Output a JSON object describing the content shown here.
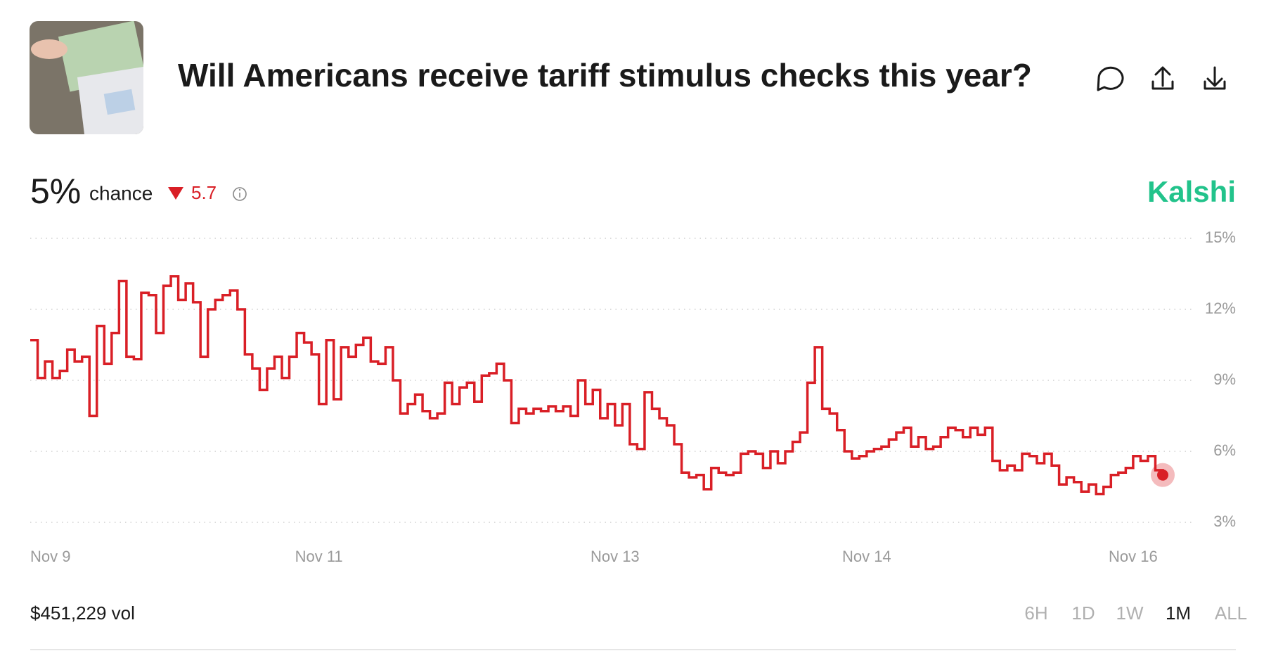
{
  "header": {
    "title": "Will Americans receive tariff stimulus checks this year?"
  },
  "stats": {
    "chance": "5%",
    "chance_label": "chance",
    "change": "5.7",
    "brand": "Kalshi"
  },
  "footer": {
    "volume": "$451,229 vol",
    "ranges": [
      "6H",
      "1D",
      "1W",
      "1M",
      "ALL"
    ],
    "selected_range": "1M"
  },
  "chart_data": {
    "type": "step-line",
    "series": [
      {
        "name": "Yes",
        "color": "#d91f26",
        "values": [
          10.7,
          9.1,
          9.8,
          9.1,
          9.4,
          10.3,
          9.8,
          10.0,
          7.5,
          11.3,
          9.7,
          11.0,
          13.2,
          10.0,
          9.9,
          12.7,
          12.6,
          11.0,
          13.0,
          13.4,
          12.4,
          13.1,
          12.3,
          10.0,
          12.0,
          12.4,
          12.6,
          12.8,
          12.0,
          10.1,
          9.5,
          8.6,
          9.5,
          10.0,
          9.1,
          10.0,
          11.0,
          10.6,
          10.1,
          8.0,
          10.7,
          8.2,
          10.4,
          10.0,
          10.5,
          10.8,
          9.8,
          9.7,
          10.4,
          9.0,
          7.6,
          8.0,
          8.4,
          7.7,
          7.4,
          7.6,
          8.9,
          8.0,
          8.7,
          8.9,
          8.1,
          9.2,
          9.3,
          9.7,
          9.0,
          7.2,
          7.8,
          7.6,
          7.8,
          7.7,
          7.9,
          7.7,
          7.9,
          7.5,
          9.0,
          8.0,
          8.6,
          7.4,
          8.0,
          7.1,
          8.0,
          6.3,
          6.1,
          8.5,
          7.8,
          7.4,
          7.1,
          6.3,
          5.1,
          4.9,
          5.0,
          4.4,
          5.3,
          5.1,
          5.0,
          5.1,
          5.9,
          6.0,
          5.9,
          5.3,
          6.0,
          5.5,
          6.0,
          6.4,
          6.8,
          8.9,
          10.4,
          7.8,
          7.6,
          6.9,
          6.0,
          5.7,
          5.8,
          6.0,
          6.1,
          6.2,
          6.5,
          6.8,
          7.0,
          6.2,
          6.6,
          6.1,
          6.2,
          6.6,
          7.0,
          6.9,
          6.6,
          7.0,
          6.7,
          7.0,
          5.6,
          5.2,
          5.4,
          5.2,
          5.9,
          5.8,
          5.5,
          5.9,
          5.4,
          4.6,
          4.9,
          4.7,
          4.3,
          4.6,
          4.2,
          4.5,
          5.0,
          5.1,
          5.3,
          5.8,
          5.6,
          5.8,
          5.2,
          5.0
        ]
      }
    ],
    "xlim": [
      0,
      153
    ],
    "xticks": [
      {
        "value": 0,
        "label": "Nov 9"
      },
      {
        "value": 39,
        "label": "Nov 11"
      },
      {
        "value": 79,
        "label": "Nov 13"
      },
      {
        "value": 113,
        "label": "Nov 14"
      },
      {
        "value": 149,
        "label": "Nov 16"
      }
    ],
    "ylim": [
      3,
      15
    ],
    "yticks": [
      {
        "value": 3,
        "label": "3%"
      },
      {
        "value": 6,
        "label": "6%"
      },
      {
        "value": 9,
        "label": "9%"
      },
      {
        "value": 12,
        "label": "12%"
      },
      {
        "value": 15,
        "label": "15%"
      }
    ],
    "grid": true
  }
}
